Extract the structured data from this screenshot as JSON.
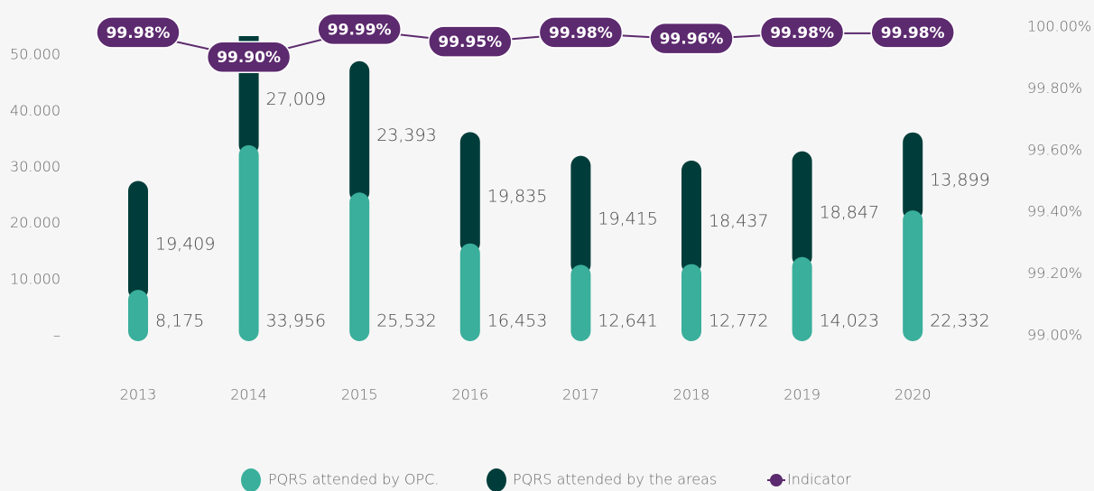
{
  "chart_data": {
    "type": "stacked-bar-line",
    "categories": [
      "2013",
      "2014",
      "2015",
      "2016",
      "2017",
      "2018",
      "2019",
      "2020"
    ],
    "series": [
      {
        "name": "PQRS attended by OPC.",
        "color": "#3aaf9b",
        "values": [
          8175,
          33956,
          25532,
          16453,
          12641,
          12772,
          14023,
          22332
        ],
        "value_labels": [
          "8,175",
          "33,956",
          "25,532",
          "16,453",
          "12,641",
          "12,772",
          "14,023",
          "22,332"
        ]
      },
      {
        "name": "PQRS attended by the areas",
        "color": "#003d3a",
        "values": [
          19409,
          27009,
          23393,
          19835,
          19415,
          18437,
          18847,
          13899
        ],
        "value_labels": [
          "19,409",
          "27,009",
          "23,393",
          "19,835",
          "19,415",
          "18,437",
          "18,847",
          "13,899"
        ]
      },
      {
        "name": "Indicator",
        "color": "#5c2a6e",
        "axis": "y2",
        "values": [
          99.98,
          99.9,
          99.99,
          99.95,
          99.98,
          99.96,
          99.98,
          99.98
        ],
        "value_labels": [
          "99.98%",
          "99.90%",
          "99.99%",
          "99.95%",
          "99.98%",
          "99.96%",
          "99.98%",
          "99.98%"
        ]
      }
    ],
    "ylim": [
      0,
      55000
    ],
    "yticks": [
      {
        "value": 0,
        "label": "–"
      },
      {
        "value": 10000,
        "label": "10.000"
      },
      {
        "value": 20000,
        "label": "20.000"
      },
      {
        "value": 30000,
        "label": "30.000"
      },
      {
        "value": 40000,
        "label": "40.000"
      },
      {
        "value": 50000,
        "label": "50.000"
      }
    ],
    "y2lim": [
      99.0,
      100.0
    ],
    "y2ticks": [
      {
        "value": 99.0,
        "label": "99.00%"
      },
      {
        "value": 99.2,
        "label": "99.20%"
      },
      {
        "value": 99.4,
        "label": "99.40%"
      },
      {
        "value": 99.6,
        "label": "99.60%"
      },
      {
        "value": 99.8,
        "label": "99.80%"
      },
      {
        "value": 100.0,
        "label": "100.00%"
      }
    ],
    "legend": "bottom"
  }
}
